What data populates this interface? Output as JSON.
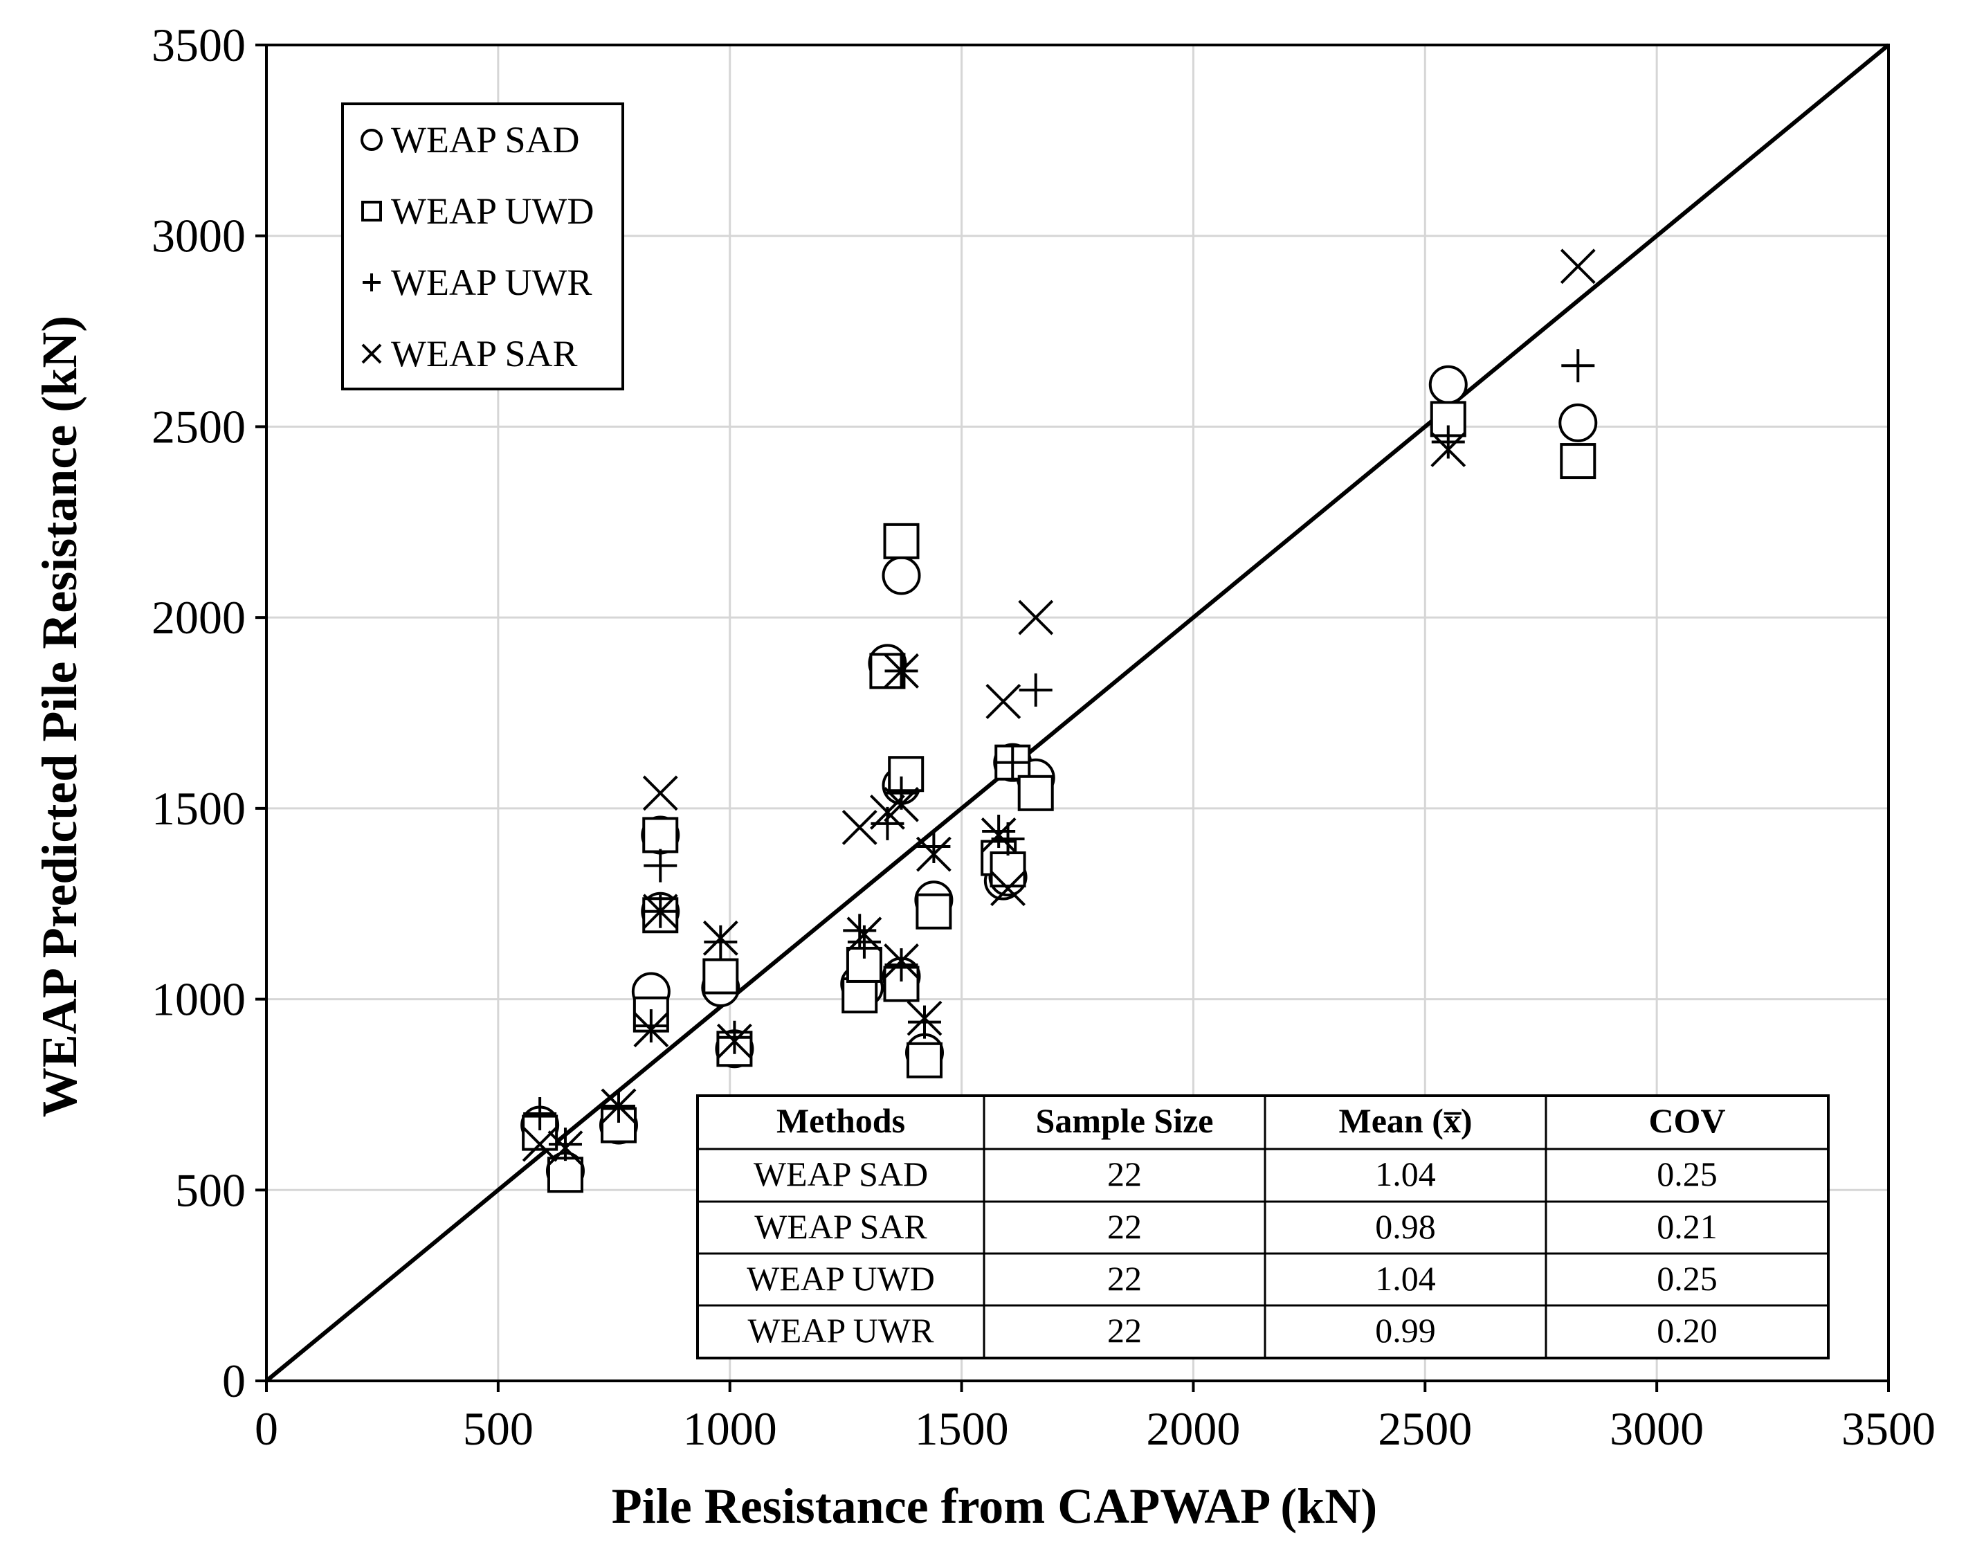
{
  "chart_data": {
    "type": "scatter",
    "title": "",
    "xlabel": "Pile Resistance from CAPWAP (kN)",
    "ylabel": "WEAP Predicted Pile Resistance (kN)",
    "xlim": [
      0,
      3500
    ],
    "ylim": [
      0,
      3500
    ],
    "x_ticks": [
      0,
      500,
      1000,
      1500,
      2000,
      2500,
      3000,
      3500
    ],
    "y_ticks": [
      0,
      500,
      1000,
      1500,
      2000,
      2500,
      3000,
      3500
    ],
    "x_tick_labels": [
      "0",
      "500",
      "1000",
      "1500",
      "2000",
      "2500",
      "3000",
      "3500"
    ],
    "y_tick_labels": [
      "0",
      "500",
      "1000",
      "1500",
      "2000",
      "2500",
      "3000",
      "3500"
    ],
    "grid": true,
    "legend_position": "top-left",
    "reference_line": {
      "label": "1:1 line",
      "from": [
        0,
        0
      ],
      "to": [
        3500,
        3500
      ]
    },
    "series": [
      {
        "name": "WEAP SAD",
        "marker": "circle",
        "points": [
          [
            590,
            670
          ],
          [
            645,
            550
          ],
          [
            760,
            670
          ],
          [
            830,
            1020
          ],
          [
            850,
            1430
          ],
          [
            850,
            1230
          ],
          [
            980,
            1030
          ],
          [
            1010,
            870
          ],
          [
            1280,
            1040
          ],
          [
            1290,
            1030
          ],
          [
            1340,
            1880
          ],
          [
            1370,
            2110
          ],
          [
            1370,
            1560
          ],
          [
            1370,
            1060
          ],
          [
            1420,
            860
          ],
          [
            1440,
            1260
          ],
          [
            1590,
            1310
          ],
          [
            1600,
            1320
          ],
          [
            1610,
            1620
          ],
          [
            1660,
            1580
          ],
          [
            2550,
            2610
          ],
          [
            2830,
            2510
          ]
        ]
      },
      {
        "name": "WEAP UWD",
        "marker": "square",
        "points": [
          [
            590,
            650
          ],
          [
            645,
            540
          ],
          [
            760,
            670
          ],
          [
            830,
            960
          ],
          [
            850,
            1430
          ],
          [
            850,
            1220
          ],
          [
            980,
            1060
          ],
          [
            1010,
            870
          ],
          [
            1280,
            1010
          ],
          [
            1290,
            1090
          ],
          [
            1340,
            1860
          ],
          [
            1370,
            2200
          ],
          [
            1380,
            1590
          ],
          [
            1370,
            1040
          ],
          [
            1420,
            840
          ],
          [
            1440,
            1230
          ],
          [
            1580,
            1370
          ],
          [
            1600,
            1340
          ],
          [
            1610,
            1620
          ],
          [
            1660,
            1540
          ],
          [
            2550,
            2520
          ],
          [
            2830,
            2410
          ]
        ]
      },
      {
        "name": "WEAP UWR",
        "marker": "plus",
        "points": [
          [
            590,
            700
          ],
          [
            645,
            620
          ],
          [
            760,
            720
          ],
          [
            830,
            930
          ],
          [
            850,
            1350
          ],
          [
            850,
            1230
          ],
          [
            980,
            1150
          ],
          [
            1010,
            900
          ],
          [
            1280,
            1180
          ],
          [
            1290,
            1150
          ],
          [
            1340,
            1460
          ],
          [
            1370,
            1860
          ],
          [
            1370,
            1540
          ],
          [
            1370,
            1090
          ],
          [
            1420,
            940
          ],
          [
            1440,
            1400
          ],
          [
            1580,
            1440
          ],
          [
            1600,
            1420
          ],
          [
            1610,
            1620
          ],
          [
            1660,
            1810
          ],
          [
            2550,
            2460
          ],
          [
            2830,
            2660
          ]
        ]
      },
      {
        "name": "WEAP SAR",
        "marker": "x",
        "points": [
          [
            590,
            620
          ],
          [
            645,
            610
          ],
          [
            760,
            720
          ],
          [
            830,
            920
          ],
          [
            850,
            1540
          ],
          [
            850,
            1230
          ],
          [
            980,
            1160
          ],
          [
            1010,
            890
          ],
          [
            1280,
            1450
          ],
          [
            1290,
            1170
          ],
          [
            1340,
            1490
          ],
          [
            1370,
            1860
          ],
          [
            1370,
            1510
          ],
          [
            1370,
            1100
          ],
          [
            1420,
            950
          ],
          [
            1440,
            1380
          ],
          [
            1580,
            1430
          ],
          [
            1590,
            1780
          ],
          [
            1600,
            1290
          ],
          [
            1660,
            2000
          ],
          [
            2550,
            2440
          ],
          [
            2830,
            2920
          ]
        ]
      }
    ],
    "summary_table": {
      "headers": [
        "Methods",
        "Sample Size",
        "Mean (x̅)",
        "COV"
      ],
      "rows": [
        [
          "WEAP SAD",
          "22",
          "1.04",
          "0.25"
        ],
        [
          "WEAP SAR",
          "22",
          "0.98",
          "0.21"
        ],
        [
          "WEAP UWD",
          "22",
          "1.04",
          "0.25"
        ],
        [
          "WEAP UWR",
          "22",
          "0.99",
          "0.20"
        ]
      ]
    }
  }
}
